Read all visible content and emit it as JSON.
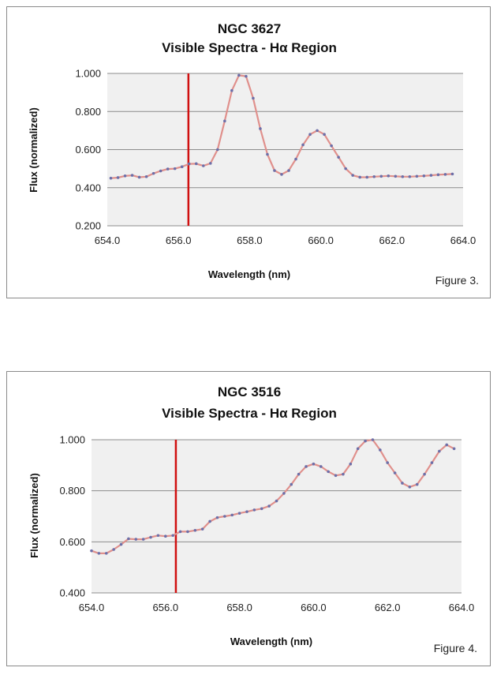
{
  "colors": {
    "plot_bg": "#f0f0f0",
    "gridline": "#8c8c8c",
    "series_line": "#e0908c",
    "series_marker": "#6d6fa8",
    "reference_line": "#d01010",
    "panel_border": "#8a8a8a"
  },
  "chart_data": [
    {
      "type": "line",
      "title": "NGC 3627",
      "subtitle": "Visible Spectra - Hα Region",
      "xlabel": "Wavelength (nm)",
      "ylabel": "Flux (normalized)",
      "caption": "Figure 3.",
      "xlim": [
        654.0,
        664.0
      ],
      "ylim": [
        0.2,
        1.0
      ],
      "x_ticks": [
        "654.0",
        "656.0",
        "658.0",
        "660.0",
        "662.0",
        "664.0"
      ],
      "y_ticks": [
        "0.200",
        "0.400",
        "0.600",
        "0.800",
        "1.000"
      ],
      "x_tick_values": [
        654,
        656,
        658,
        660,
        662,
        664
      ],
      "y_tick_values": [
        0.2,
        0.4,
        0.6,
        0.8,
        1.0
      ],
      "grid": "horizontal",
      "reference_line_x": 656.28,
      "series": [
        {
          "x": [
            654.1,
            654.3,
            654.5,
            654.7,
            654.9,
            655.1,
            655.3,
            655.5,
            655.7,
            655.9,
            656.1,
            656.3,
            656.5,
            656.7,
            656.9,
            657.1,
            657.3,
            657.5,
            657.7,
            657.9,
            658.1,
            658.3,
            658.5,
            658.7,
            658.9,
            659.1,
            659.3,
            659.5,
            659.7,
            659.9,
            660.1,
            660.3,
            660.5,
            660.7,
            660.9,
            661.1,
            661.3,
            661.5,
            661.7,
            661.9,
            662.1,
            662.3,
            662.5,
            662.7,
            662.9,
            663.1,
            663.3,
            663.5,
            663.7
          ],
          "y": [
            0.45,
            0.453,
            0.462,
            0.465,
            0.455,
            0.458,
            0.475,
            0.488,
            0.498,
            0.5,
            0.51,
            0.525,
            0.526,
            0.515,
            0.528,
            0.6,
            0.75,
            0.91,
            0.99,
            0.985,
            0.87,
            0.71,
            0.575,
            0.49,
            0.47,
            0.49,
            0.55,
            0.625,
            0.68,
            0.7,
            0.68,
            0.62,
            0.56,
            0.5,
            0.465,
            0.455,
            0.455,
            0.458,
            0.46,
            0.462,
            0.46,
            0.458,
            0.458,
            0.46,
            0.462,
            0.465,
            0.468,
            0.47,
            0.472
          ]
        }
      ]
    },
    {
      "type": "line",
      "title": "NGC 3516",
      "subtitle": "Visible Spectra - Hα Region",
      "xlabel": "Wavelength (nm)",
      "ylabel": "Flux (normalized)",
      "caption": "Figure 4.",
      "xlim": [
        654.0,
        664.0
      ],
      "ylim": [
        0.4,
        1.0
      ],
      "x_ticks": [
        "654.0",
        "656.0",
        "658.0",
        "660.0",
        "662.0",
        "664.0"
      ],
      "y_ticks": [
        "0.400",
        "0.600",
        "0.800",
        "1.000"
      ],
      "x_tick_values": [
        654,
        656,
        658,
        660,
        662,
        664
      ],
      "y_tick_values": [
        0.4,
        0.6,
        0.8,
        1.0
      ],
      "grid": "horizontal",
      "reference_line_x": 656.28,
      "series": [
        {
          "x": [
            654.0,
            654.2,
            654.4,
            654.6,
            654.8,
            655.0,
            655.2,
            655.4,
            655.6,
            655.8,
            656.0,
            656.2,
            656.4,
            656.6,
            656.8,
            657.0,
            657.2,
            657.4,
            657.6,
            657.8,
            658.0,
            658.2,
            658.4,
            658.6,
            658.8,
            659.0,
            659.2,
            659.4,
            659.6,
            659.8,
            660.0,
            660.2,
            660.4,
            660.6,
            660.8,
            661.0,
            661.2,
            661.4,
            661.6,
            661.8,
            662.0,
            662.2,
            662.4,
            662.6,
            662.8,
            663.0,
            663.2,
            663.4,
            663.6,
            663.8
          ],
          "y": [
            0.565,
            0.555,
            0.555,
            0.57,
            0.59,
            0.612,
            0.61,
            0.61,
            0.618,
            0.625,
            0.622,
            0.625,
            0.64,
            0.64,
            0.645,
            0.65,
            0.68,
            0.695,
            0.7,
            0.705,
            0.712,
            0.718,
            0.725,
            0.73,
            0.74,
            0.76,
            0.79,
            0.825,
            0.865,
            0.895,
            0.905,
            0.895,
            0.875,
            0.86,
            0.865,
            0.905,
            0.965,
            0.995,
            1.0,
            0.96,
            0.91,
            0.87,
            0.83,
            0.815,
            0.825,
            0.865,
            0.91,
            0.955,
            0.98,
            0.965
          ]
        }
      ]
    }
  ]
}
